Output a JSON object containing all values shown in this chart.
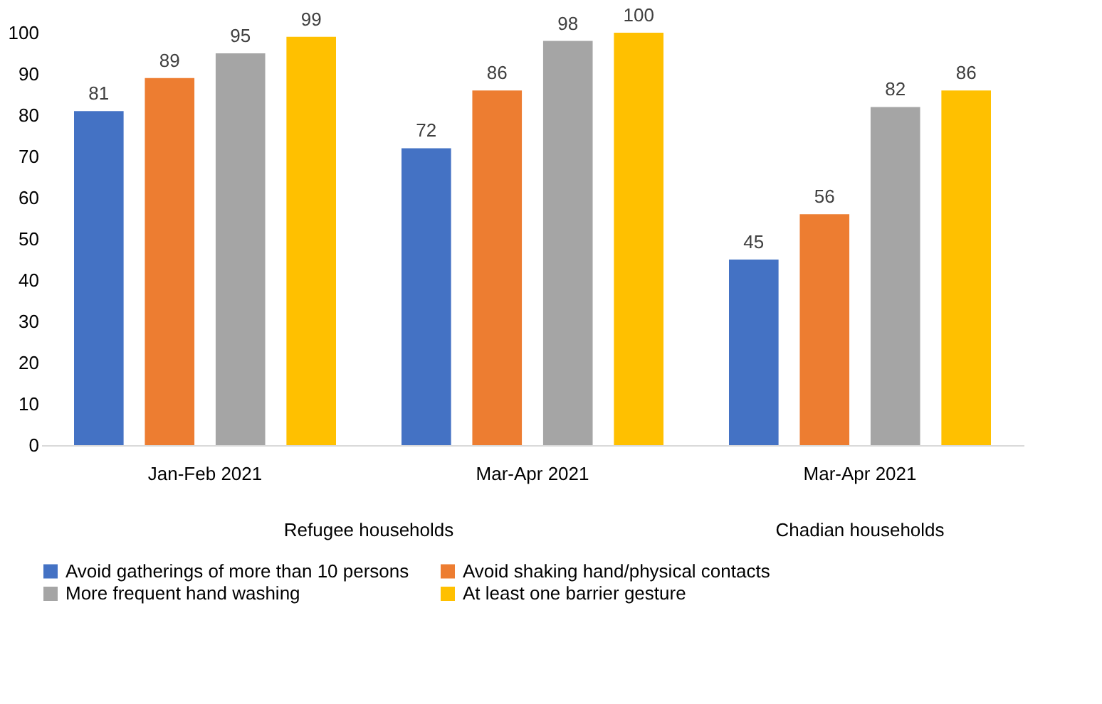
{
  "chart_data": {
    "type": "bar",
    "categories": [
      "Jan-Feb 2021",
      "Mar-Apr 2021",
      "Mar-Apr 2021"
    ],
    "series": [
      {
        "name": "Avoid gatherings of more than 10 persons",
        "color": "#4472c4",
        "values": [
          81,
          72,
          45
        ]
      },
      {
        "name": "Avoid shaking hand/physical contacts",
        "color": "#ed7d31",
        "values": [
          89,
          86,
          56
        ]
      },
      {
        "name": "More frequent hand washing",
        "color": "#a5a5a5",
        "values": [
          95,
          98,
          82
        ]
      },
      {
        "name": "At least one barrier gesture",
        "color": "#ffc000",
        "values": [
          99,
          100,
          86
        ]
      }
    ],
    "annotations": [
      "Refugee households",
      "Chadian households"
    ],
    "ylim": [
      0,
      100
    ],
    "yticks": [
      0,
      10,
      20,
      30,
      40,
      50,
      60,
      70,
      80,
      90,
      100
    ],
    "data_labels": true,
    "grid": false,
    "legend": "bottom"
  }
}
